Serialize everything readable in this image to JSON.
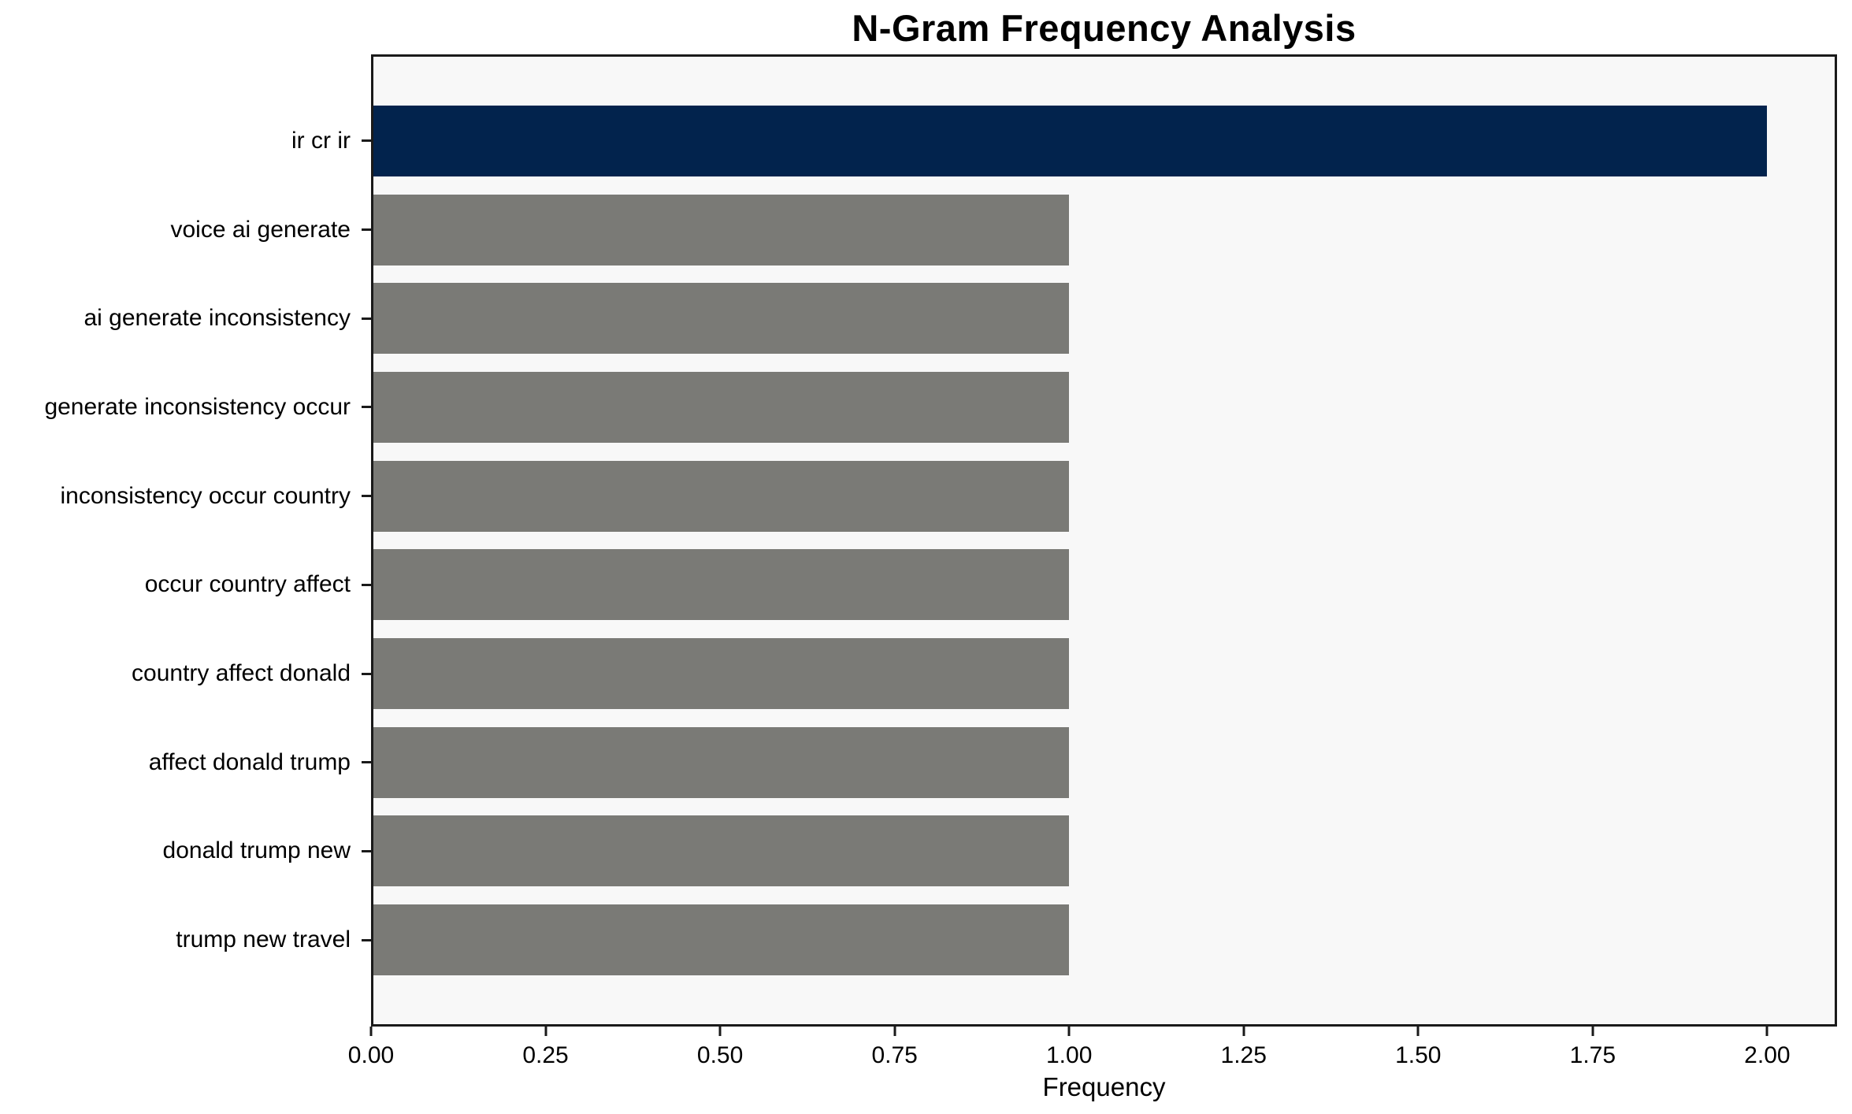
{
  "chart_data": {
    "type": "bar",
    "orientation": "horizontal",
    "title": "N-Gram Frequency Analysis",
    "xlabel": "Frequency",
    "ylabel": "",
    "categories": [
      "ir cr ir",
      "voice ai generate",
      "ai generate inconsistency",
      "generate inconsistency occur",
      "inconsistency occur country",
      "occur country affect",
      "country affect donald",
      "affect donald trump",
      "donald trump new",
      "trump new travel"
    ],
    "values": [
      2.0,
      1.0,
      1.0,
      1.0,
      1.0,
      1.0,
      1.0,
      1.0,
      1.0,
      1.0
    ],
    "bar_colors": [
      "#02234d",
      "#7a7a76",
      "#7a7a76",
      "#7a7a76",
      "#7a7a76",
      "#7a7a76",
      "#7a7a76",
      "#7a7a76",
      "#7a7a76",
      "#7a7a76"
    ],
    "highlight_color": "#02234d",
    "default_bar_color": "#7a7a76",
    "plot_background": "#f8f8f8",
    "figure_background": "#ffffff",
    "axis_color": "#1a1a1a",
    "xlim": [
      0,
      2.1
    ],
    "xticks": [
      {
        "value": 0.0,
        "label": "0.00"
      },
      {
        "value": 0.25,
        "label": "0.25"
      },
      {
        "value": 0.5,
        "label": "0.50"
      },
      {
        "value": 0.75,
        "label": "0.75"
      },
      {
        "value": 1.0,
        "label": "1.00"
      },
      {
        "value": 1.25,
        "label": "1.25"
      },
      {
        "value": 1.5,
        "label": "1.50"
      },
      {
        "value": 1.75,
        "label": "1.75"
      },
      {
        "value": 2.0,
        "label": "2.00"
      }
    ],
    "grid": false,
    "legend": false
  }
}
